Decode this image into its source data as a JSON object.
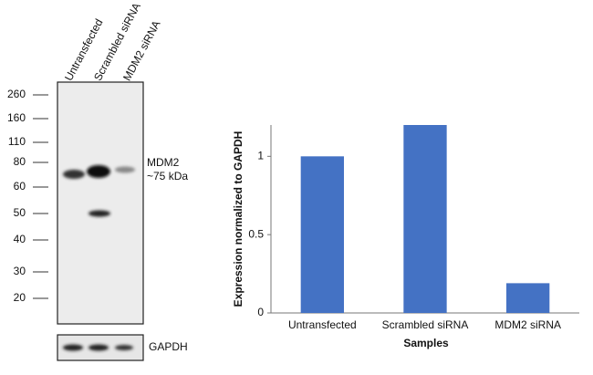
{
  "chart_data": {
    "type": "bar",
    "categories": [
      "Untransfected",
      "Scrambled siRNA",
      "MDM2 siRNA"
    ],
    "values": [
      1,
      1.2,
      0.19
    ],
    "color": "#4472c4",
    "ylim": [
      0,
      1.2
    ],
    "yticks": [
      0,
      0.5,
      1
    ],
    "x_label": "Samples",
    "y_label": "Expression normalized to GAPDH",
    "grid": false
  },
  "blot": {
    "lanes": [
      "Untransfected",
      "Scrambled siRNA",
      "MDM2 siRNA"
    ],
    "markers": [
      "260",
      "160",
      "110",
      "80",
      "60",
      "50",
      "40",
      "30",
      "20"
    ],
    "target_label": "MDM2",
    "target_size": "~75 kDa",
    "control_label": "GAPDH"
  }
}
